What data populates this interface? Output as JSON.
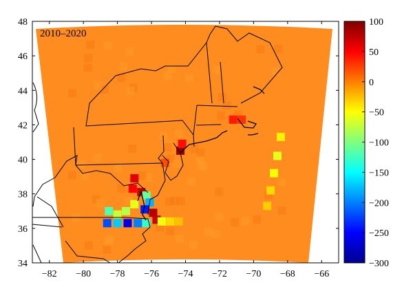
{
  "map": {
    "label": "2010–2020",
    "x_ticks": [
      "−82",
      "−80",
      "−78",
      "−76",
      "−74",
      "−72",
      "−70",
      "−68",
      "−66"
    ],
    "y_ticks": [
      "48",
      "46",
      "44",
      "42",
      "40",
      "38",
      "36",
      "34"
    ],
    "x_range": [
      -83,
      -65
    ],
    "y_range": [
      34,
      48
    ]
  },
  "colorbar": {
    "ticks": [
      "100",
      "50",
      "0",
      "−50",
      "−100",
      "−150",
      "−200",
      "−250",
      "−300"
    ],
    "range": [
      -300,
      100
    ],
    "colormap": "jet"
  },
  "colors": {
    "field": "#ff8c1e",
    "field_light": "#ff9a26",
    "field_dark": "#f57a14",
    "land_line": "#000000",
    "background": "#ffffff"
  },
  "chart_data": {
    "type": "heatmap",
    "title": "2010–2020",
    "xlabel": "",
    "ylabel": "",
    "xlim": [
      -83,
      -65
    ],
    "ylim": [
      34,
      48
    ],
    "colorbar_range": [
      -300,
      100
    ],
    "background_value": -15,
    "cells": [
      {
        "lon": -74.3,
        "lat": 40.5,
        "value": 90
      },
      {
        "lon": -74.2,
        "lat": 40.9,
        "value": 45
      },
      {
        "lon": -71.2,
        "lat": 42.3,
        "value": 40
      },
      {
        "lon": -70.7,
        "lat": 42.3,
        "value": 30
      },
      {
        "lon": -75.2,
        "lat": 39.8,
        "value": 20
      },
      {
        "lon": -77.0,
        "lat": 38.9,
        "value": 60
      },
      {
        "lon": -77.1,
        "lat": 38.3,
        "value": 50
      },
      {
        "lon": -76.6,
        "lat": 38.1,
        "value": 70
      },
      {
        "lon": -76.3,
        "lat": 37.9,
        "value": -110
      },
      {
        "lon": -76.1,
        "lat": 37.5,
        "value": -180
      },
      {
        "lon": -76.4,
        "lat": 37.1,
        "value": -240
      },
      {
        "lon": -75.9,
        "lat": 36.9,
        "value": 80
      },
      {
        "lon": -77.0,
        "lat": 37.4,
        "value": -60
      },
      {
        "lon": -77.5,
        "lat": 37.0,
        "value": -80
      },
      {
        "lon": -78.5,
        "lat": 37.0,
        "value": -120
      },
      {
        "lon": -78.0,
        "lat": 36.8,
        "value": -70
      },
      {
        "lon": -78.6,
        "lat": 36.3,
        "value": -220
      },
      {
        "lon": -78.0,
        "lat": 36.3,
        "value": -170
      },
      {
        "lon": -77.4,
        "lat": 36.3,
        "value": -260
      },
      {
        "lon": -76.8,
        "lat": 36.3,
        "value": -200
      },
      {
        "lon": -76.3,
        "lat": 36.3,
        "value": -130
      },
      {
        "lon": -75.7,
        "lat": 36.5,
        "value": 70
      },
      {
        "lon": -75.4,
        "lat": 36.4,
        "value": -55
      },
      {
        "lon": -74.9,
        "lat": 36.4,
        "value": -35
      },
      {
        "lon": -74.4,
        "lat": 36.4,
        "value": -25
      },
      {
        "lon": -68.4,
        "lat": 41.3,
        "value": -45
      },
      {
        "lon": -68.6,
        "lat": 40.2,
        "value": -60
      },
      {
        "lon": -68.8,
        "lat": 39.2,
        "value": -50
      },
      {
        "lon": -69.0,
        "lat": 38.2,
        "value": -35
      },
      {
        "lon": -69.2,
        "lat": 37.3,
        "value": -30
      }
    ]
  }
}
